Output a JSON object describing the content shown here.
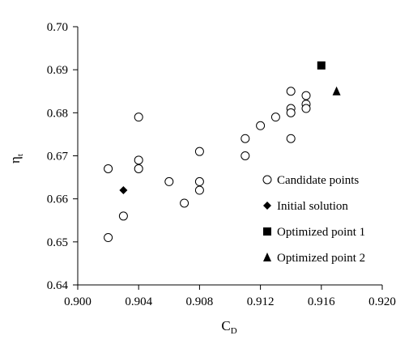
{
  "chart_data": {
    "type": "scatter",
    "xlabel": "C",
    "xlabel_sub": "D",
    "ylabel": "η",
    "ylabel_sub": "t",
    "xlim": [
      0.9,
      0.92
    ],
    "ylim": [
      0.64,
      0.7
    ],
    "xticks": [
      "0.900",
      "0.904",
      "0.908",
      "0.912",
      "0.916",
      "0.920"
    ],
    "yticks": [
      "0.64",
      "0.65",
      "0.66",
      "0.67",
      "0.68",
      "0.69",
      "0.70"
    ],
    "xtick_values": [
      0.9,
      0.904,
      0.908,
      0.912,
      0.916,
      0.92
    ],
    "ytick_values": [
      0.64,
      0.65,
      0.66,
      0.67,
      0.68,
      0.69,
      0.7
    ],
    "legend_position": "right",
    "series": [
      {
        "name": "Candidate points",
        "marker": "circle-open",
        "points": [
          [
            0.902,
            0.667
          ],
          [
            0.902,
            0.651
          ],
          [
            0.903,
            0.656
          ],
          [
            0.904,
            0.679
          ],
          [
            0.904,
            0.669
          ],
          [
            0.904,
            0.667
          ],
          [
            0.906,
            0.664
          ],
          [
            0.907,
            0.659
          ],
          [
            0.908,
            0.671
          ],
          [
            0.908,
            0.664
          ],
          [
            0.908,
            0.662
          ],
          [
            0.911,
            0.674
          ],
          [
            0.911,
            0.67
          ],
          [
            0.912,
            0.677
          ],
          [
            0.913,
            0.679
          ],
          [
            0.914,
            0.685
          ],
          [
            0.914,
            0.681
          ],
          [
            0.914,
            0.68
          ],
          [
            0.914,
            0.674
          ],
          [
            0.915,
            0.684
          ],
          [
            0.915,
            0.682
          ],
          [
            0.915,
            0.681
          ]
        ]
      },
      {
        "name": "Initial solution",
        "marker": "diamond",
        "points": [
          [
            0.903,
            0.662
          ]
        ]
      },
      {
        "name": "Optimized point 1",
        "marker": "square",
        "points": [
          [
            0.916,
            0.691
          ]
        ]
      },
      {
        "name": "Optimized point 2",
        "marker": "triangle",
        "points": [
          [
            0.917,
            0.685
          ]
        ]
      }
    ]
  }
}
